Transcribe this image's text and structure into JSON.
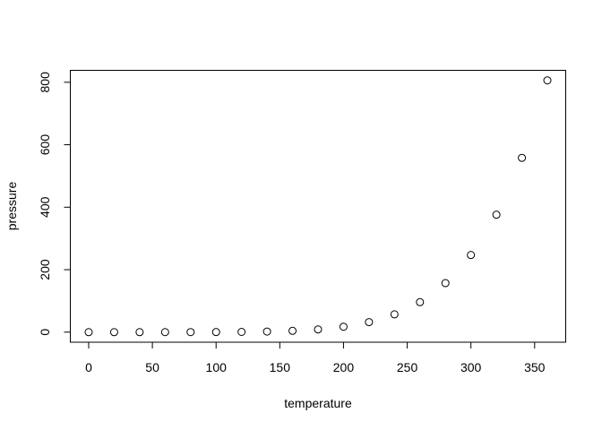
{
  "chart_data": {
    "type": "scatter",
    "title": "",
    "xlabel": "temperature",
    "ylabel": "pressure",
    "xlim": [
      -14.4,
      374.4
    ],
    "ylim": [
      -32.24,
      838.24
    ],
    "xticks": [
      0,
      50,
      100,
      150,
      200,
      250,
      300,
      350
    ],
    "yticks": [
      0,
      200,
      400,
      600,
      800
    ],
    "grid": false,
    "marker": "open-circle",
    "color": "#000000",
    "x": [
      0,
      20,
      40,
      60,
      80,
      100,
      120,
      140,
      160,
      180,
      200,
      220,
      240,
      260,
      280,
      300,
      320,
      340,
      360
    ],
    "y": [
      0.0002,
      0.0012,
      0.006,
      0.03,
      0.09,
      0.27,
      0.75,
      1.85,
      4.2,
      8.8,
      17.3,
      32.1,
      57,
      96,
      157,
      247,
      376,
      558,
      806
    ]
  }
}
